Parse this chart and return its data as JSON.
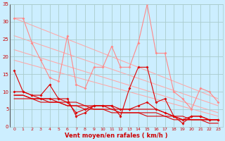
{
  "background_color": "#cceeff",
  "grid_color": "#aacccc",
  "xlabel": "Vent moyen/en rafales ( km/h )",
  "xlabel_color": "#cc0000",
  "xlim": [
    -0.5,
    23.5
  ],
  "ylim": [
    0,
    35
  ],
  "yticks": [
    0,
    5,
    10,
    15,
    20,
    25,
    30,
    35
  ],
  "xticks": [
    0,
    1,
    2,
    3,
    4,
    5,
    6,
    7,
    8,
    9,
    10,
    11,
    12,
    13,
    14,
    15,
    16,
    17,
    18,
    19,
    20,
    21,
    22,
    23
  ],
  "trend1_x": [
    0,
    23
  ],
  "trend1_y": [
    31,
    8
  ],
  "trend1_color": "#ffaaaa",
  "trend2_x": [
    0,
    23
  ],
  "trend2_y": [
    26,
    6
  ],
  "trend2_color": "#ffaaaa",
  "trend3_x": [
    0,
    23
  ],
  "trend3_y": [
    22,
    4
  ],
  "trend3_color": "#ffaaaa",
  "trend4_x": [
    0,
    23
  ],
  "trend4_y": [
    19,
    3
  ],
  "trend4_color": "#ffaaaa",
  "line1_x": [
    0,
    1,
    2,
    3,
    4,
    5,
    6,
    7,
    8,
    9,
    10,
    11,
    12,
    13,
    14,
    15,
    16,
    17,
    18,
    19,
    20,
    21,
    22,
    23
  ],
  "line1_y": [
    31,
    31,
    24,
    19,
    14,
    13,
    26,
    12,
    11,
    17,
    17,
    23,
    17,
    17,
    24,
    35,
    21,
    21,
    10,
    8,
    5,
    11,
    10,
    7
  ],
  "line1_color": "#ff8888",
  "line2_x": [
    0,
    1,
    2,
    3,
    4,
    5,
    6,
    7,
    8,
    9,
    10,
    11,
    12,
    13,
    14,
    15,
    16,
    17,
    18,
    19,
    20,
    21,
    22,
    23
  ],
  "line2_y": [
    16,
    10,
    9,
    9,
    12,
    8,
    8,
    3,
    4,
    6,
    6,
    6,
    3,
    11,
    17,
    17,
    7,
    8,
    3,
    2,
    3,
    3,
    2,
    2
  ],
  "line2_color": "#dd0000",
  "line3_x": [
    0,
    1,
    2,
    3,
    4,
    5,
    6,
    7,
    8,
    9,
    10,
    11,
    12,
    13,
    14,
    15,
    16,
    17,
    18,
    19,
    20,
    21,
    22,
    23
  ],
  "line3_y": [
    10,
    10,
    9,
    8,
    8,
    8,
    7,
    4,
    5,
    6,
    6,
    6,
    5,
    5,
    6,
    7,
    5,
    4,
    3,
    1,
    3,
    3,
    2,
    2
  ],
  "line3_color": "#dd0000",
  "line4_x": [
    0,
    1,
    2,
    3,
    4,
    5,
    6,
    7,
    8,
    9,
    10,
    11,
    12,
    13,
    14,
    15,
    16,
    17,
    18,
    19,
    20,
    21,
    22,
    23
  ],
  "line4_y": [
    9,
    9,
    8,
    8,
    8,
    7,
    7,
    7,
    6,
    6,
    6,
    5,
    5,
    5,
    5,
    5,
    5,
    4,
    3,
    3,
    2,
    2,
    2,
    2
  ],
  "line4_color": "#dd0000",
  "line5_x": [
    0,
    1,
    2,
    3,
    4,
    5,
    6,
    7,
    8,
    9,
    10,
    11,
    12,
    13,
    14,
    15,
    16,
    17,
    18,
    19,
    20,
    21,
    22,
    23
  ],
  "line5_y": [
    9,
    9,
    8,
    8,
    7,
    7,
    6,
    6,
    6,
    5,
    5,
    5,
    4,
    4,
    4,
    4,
    4,
    3,
    3,
    2,
    2,
    2,
    2,
    2
  ],
  "line5_color": "#dd0000",
  "line6_x": [
    0,
    1,
    2,
    3,
    4,
    5,
    6,
    7,
    8,
    9,
    10,
    11,
    12,
    13,
    14,
    15,
    16,
    17,
    18,
    19,
    20,
    21,
    22,
    23
  ],
  "line6_y": [
    8,
    8,
    8,
    7,
    7,
    7,
    6,
    6,
    5,
    5,
    5,
    4,
    4,
    4,
    4,
    3,
    3,
    3,
    2,
    2,
    2,
    2,
    1,
    1
  ],
  "line6_color": "#dd0000"
}
